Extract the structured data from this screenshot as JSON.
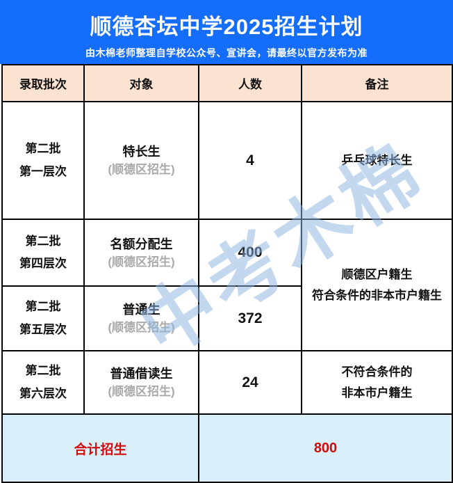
{
  "banner": {
    "title": "顺德杏坛中学2025招生计划",
    "subtitle": "由木棉老师整理自学校公众号、宣讲会，请最终以官方发布为准"
  },
  "table": {
    "headers": [
      "录取批次",
      "对象",
      "人数",
      "备注"
    ],
    "rows": [
      {
        "batch": [
          "第二批",
          "第一层次"
        ],
        "target": "特长生",
        "target_note": "(顺德区招生)",
        "count": "4",
        "remark": [
          "乒乓球特长生"
        ]
      },
      {
        "batch": [
          "第二批",
          "第四层次"
        ],
        "target": "名额分配生",
        "target_note": "(顺德区招生)",
        "count": "400",
        "remark": [
          "顺德区户籍生",
          "符合条件的非本市户籍生"
        ]
      },
      {
        "batch": [
          "第二批",
          "第五层次"
        ],
        "target": "普通生",
        "target_note": "(顺德区招生)",
        "count": "372",
        "remark": []
      },
      {
        "batch": [
          "第二批",
          "第六层次"
        ],
        "target": "普通借读生",
        "target_note": "(顺德区招生)",
        "count": "24",
        "remark": [
          "不符合条件的",
          "非本市户籍生"
        ]
      }
    ]
  },
  "footer": {
    "label": "合计招生",
    "total": "800"
  },
  "watermark": {
    "text": "中考木棉"
  },
  "colors": {
    "banner_bg": "#146dfb",
    "header_bg": "#fce3d1",
    "footer_bg": "#d9f0fb",
    "accent_red": "#d20a0a",
    "note_gray": "#a9a9a9",
    "watermark_blue": "#8db5e2"
  }
}
